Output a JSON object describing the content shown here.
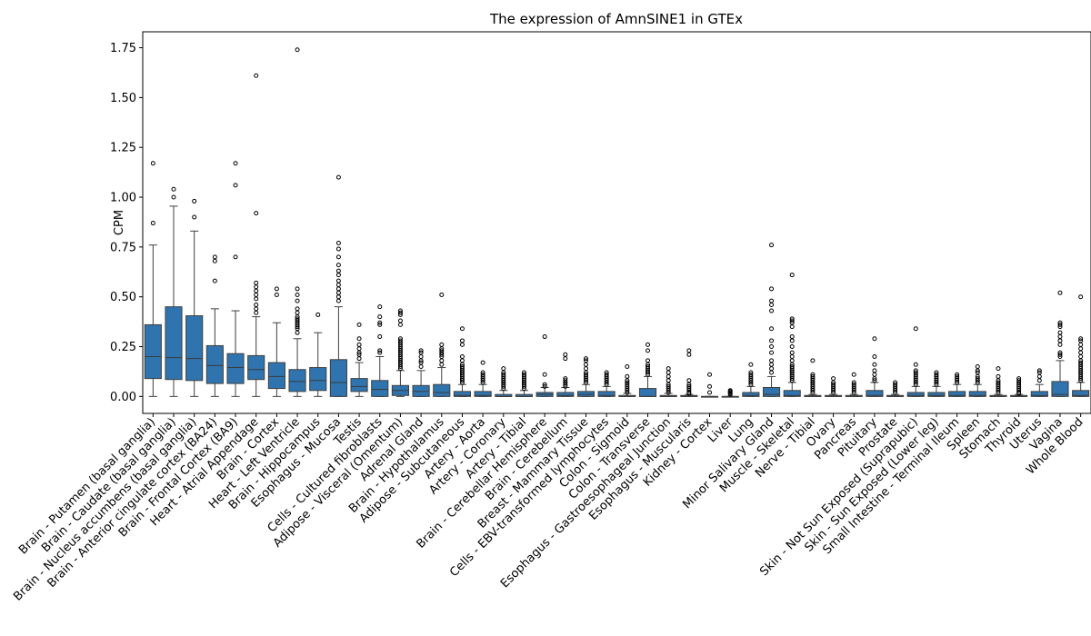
{
  "chart_data": {
    "type": "box",
    "title": "The expression of AmnSINE1 in GTEx",
    "xlabel": "",
    "ylabel": "CPM",
    "ylim": [
      -0.085,
      1.83
    ],
    "yticks": [
      "0.00",
      "0.25",
      "0.50",
      "0.75",
      "1.00",
      "1.25",
      "1.50",
      "1.75"
    ],
    "grid": false,
    "color": "#2f74ae",
    "median_color": "#3a3a3a",
    "categories": [
      "Brain - Putamen (basal ganglia)",
      "Brain - Caudate (basal ganglia)",
      "Brain - Nucleus accumbens (basal ganglia)",
      "Brain - Anterior cingulate cortex (BA24)",
      "Brain - Frontal Cortex (BA9)",
      "Heart - Atrial Appendage",
      "Brain - Cortex",
      "Heart - Left Ventricle",
      "Brain - Hippocampus",
      "Esophagus - Mucosa",
      "Testis",
      "Cells - Cultured fibroblasts",
      "Adipose - Visceral (Omentum)",
      "Adrenal Gland",
      "Brain - Hypothalamus",
      "Adipose - Subcutaneous",
      "Artery - Aorta",
      "Artery - Coronary",
      "Artery - Tibial",
      "Brain - Cerebellar Hemisphere",
      "Brain - Cerebellum",
      "Breast - Mammary Tissue",
      "Cells - EBV-transformed lymphocytes",
      "Colon - Sigmoid",
      "Colon - Transverse",
      "Esophagus - Gastroesophageal Junction",
      "Esophagus - Muscularis",
      "Kidney - Cortex",
      "Liver",
      "Lung",
      "Minor Salivary Gland",
      "Muscle - Skeletal",
      "Nerve - Tibial",
      "Ovary",
      "Pancreas",
      "Pituitary",
      "Prostate",
      "Skin - Not Sun Exposed (Suprapubic)",
      "Skin - Sun Exposed (Lower leg)",
      "Small Intestine - Terminal Ileum",
      "Spleen",
      "Stomach",
      "Thyroid",
      "Uterus",
      "Vagina",
      "Whole Blood"
    ],
    "boxes": [
      {
        "whislo": 0.0,
        "q1": 0.09,
        "med": 0.2,
        "q3": 0.36,
        "whishi": 0.76,
        "fliers": [
          0.87,
          1.17
        ]
      },
      {
        "whislo": 0.0,
        "q1": 0.085,
        "med": 0.195,
        "q3": 0.45,
        "whishi": 0.955,
        "fliers": [
          1.0,
          1.04
        ]
      },
      {
        "whislo": 0.0,
        "q1": 0.08,
        "med": 0.19,
        "q3": 0.405,
        "whishi": 0.83,
        "fliers": [
          0.9,
          0.98
        ]
      },
      {
        "whislo": 0.0,
        "q1": 0.065,
        "med": 0.155,
        "q3": 0.255,
        "whishi": 0.44,
        "fliers": [
          0.58,
          0.68,
          0.7
        ]
      },
      {
        "whislo": 0.0,
        "q1": 0.065,
        "med": 0.145,
        "q3": 0.215,
        "whishi": 0.43,
        "fliers": [
          0.7,
          1.06,
          1.17
        ]
      },
      {
        "whislo": 0.0,
        "q1": 0.085,
        "med": 0.135,
        "q3": 0.205,
        "whishi": 0.4,
        "fliers": [
          0.42,
          0.44,
          0.46,
          0.49,
          0.51,
          0.53,
          0.55,
          0.57,
          0.92,
          1.61
        ]
      },
      {
        "whislo": 0.0,
        "q1": 0.04,
        "med": 0.1,
        "q3": 0.17,
        "whishi": 0.37,
        "fliers": [
          0.51,
          0.54
        ]
      },
      {
        "whislo": 0.0,
        "q1": 0.025,
        "med": 0.075,
        "q3": 0.135,
        "whishi": 0.29,
        "fliers": [
          0.32,
          0.34,
          0.35,
          0.36,
          0.37,
          0.38,
          0.39,
          0.4,
          0.42,
          0.44,
          0.48,
          0.51,
          0.54,
          1.74
        ]
      },
      {
        "whislo": 0.0,
        "q1": 0.03,
        "med": 0.08,
        "q3": 0.145,
        "whishi": 0.32,
        "fliers": [
          0.41
        ]
      },
      {
        "whislo": 0.0,
        "q1": 0.0,
        "med": 0.07,
        "q3": 0.185,
        "whishi": 0.45,
        "fliers": [
          0.48,
          0.5,
          0.52,
          0.54,
          0.56,
          0.58,
          0.61,
          0.63,
          0.66,
          0.7,
          0.74,
          0.77,
          1.1
        ]
      },
      {
        "whislo": 0.0,
        "q1": 0.025,
        "med": 0.05,
        "q3": 0.09,
        "whishi": 0.17,
        "fliers": [
          0.19,
          0.21,
          0.22,
          0.24,
          0.26,
          0.29,
          0.36
        ]
      },
      {
        "whislo": 0.0,
        "q1": 0.0,
        "med": 0.035,
        "q3": 0.08,
        "whishi": 0.2,
        "fliers": [
          0.22,
          0.23,
          0.3,
          0.36,
          0.37,
          0.4,
          0.45
        ]
      },
      {
        "whislo": 0.0,
        "q1": 0.005,
        "med": 0.03,
        "q3": 0.055,
        "whishi": 0.13,
        "fliers": [
          0.14,
          0.15,
          0.16,
          0.17,
          0.18,
          0.19,
          0.2,
          0.21,
          0.22,
          0.23,
          0.24,
          0.25,
          0.26,
          0.27,
          0.28,
          0.29,
          0.36,
          0.38,
          0.41,
          0.42,
          0.43
        ]
      },
      {
        "whislo": 0.0,
        "q1": 0.0,
        "med": 0.025,
        "q3": 0.055,
        "whishi": 0.13,
        "fliers": [
          0.15,
          0.17,
          0.18,
          0.2,
          0.22,
          0.23
        ]
      },
      {
        "whislo": 0.0,
        "q1": 0.0,
        "med": 0.02,
        "q3": 0.06,
        "whishi": 0.145,
        "fliers": [
          0.16,
          0.18,
          0.2,
          0.21,
          0.22,
          0.23,
          0.24,
          0.26,
          0.51
        ]
      },
      {
        "whislo": 0.0,
        "q1": 0.0,
        "med": 0.005,
        "q3": 0.025,
        "whishi": 0.06,
        "fliers": [
          0.07,
          0.08,
          0.09,
          0.1,
          0.11,
          0.12,
          0.13,
          0.14,
          0.15,
          0.16,
          0.18,
          0.2,
          0.26,
          0.28,
          0.34
        ]
      },
      {
        "whislo": 0.0,
        "q1": 0.0,
        "med": 0.005,
        "q3": 0.025,
        "whishi": 0.06,
        "fliers": [
          0.07,
          0.08,
          0.09,
          0.1,
          0.11,
          0.12,
          0.17
        ]
      },
      {
        "whislo": 0.0,
        "q1": 0.0,
        "med": 0.0,
        "q3": 0.01,
        "whishi": 0.03,
        "fliers": [
          0.04,
          0.05,
          0.06,
          0.07,
          0.08,
          0.09,
          0.1,
          0.11,
          0.12,
          0.14
        ]
      },
      {
        "whislo": 0.0,
        "q1": 0.0,
        "med": 0.0,
        "q3": 0.01,
        "whishi": 0.03,
        "fliers": [
          0.04,
          0.05,
          0.06,
          0.07,
          0.08,
          0.09,
          0.1,
          0.11,
          0.12
        ]
      },
      {
        "whislo": 0.0,
        "q1": 0.0,
        "med": 0.01,
        "q3": 0.02,
        "whishi": 0.045,
        "fliers": [
          0.05,
          0.06,
          0.11,
          0.3
        ]
      },
      {
        "whislo": 0.0,
        "q1": 0.0,
        "med": 0.005,
        "q3": 0.02,
        "whishi": 0.045,
        "fliers": [
          0.05,
          0.06,
          0.07,
          0.08,
          0.09,
          0.19,
          0.21
        ]
      },
      {
        "whislo": 0.0,
        "q1": 0.0,
        "med": 0.01,
        "q3": 0.025,
        "whishi": 0.06,
        "fliers": [
          0.07,
          0.08,
          0.09,
          0.1,
          0.11,
          0.12,
          0.14,
          0.16,
          0.18,
          0.19
        ]
      },
      {
        "whislo": 0.0,
        "q1": 0.0,
        "med": 0.005,
        "q3": 0.025,
        "whishi": 0.05,
        "fliers": [
          0.06,
          0.07,
          0.08,
          0.09,
          0.1,
          0.11,
          0.12
        ]
      },
      {
        "whislo": 0.0,
        "q1": 0.0,
        "med": 0.0,
        "q3": 0.005,
        "whishi": 0.015,
        "fliers": [
          0.02,
          0.03,
          0.04,
          0.05,
          0.06,
          0.07,
          0.08,
          0.1,
          0.15
        ]
      },
      {
        "whislo": 0.0,
        "q1": 0.0,
        "med": 0.0,
        "q3": 0.04,
        "whishi": 0.1,
        "fliers": [
          0.11,
          0.12,
          0.13,
          0.14,
          0.15,
          0.16,
          0.18,
          0.23,
          0.26
        ]
      },
      {
        "whislo": 0.0,
        "q1": 0.0,
        "med": 0.0,
        "q3": 0.005,
        "whishi": 0.015,
        "fliers": [
          0.02,
          0.03,
          0.04,
          0.05,
          0.06,
          0.08,
          0.1,
          0.12,
          0.14
        ]
      },
      {
        "whislo": 0.0,
        "q1": 0.0,
        "med": 0.0,
        "q3": 0.005,
        "whishi": 0.01,
        "fliers": [
          0.015,
          0.02,
          0.03,
          0.04,
          0.05,
          0.06,
          0.08,
          0.21,
          0.23
        ]
      },
      {
        "whislo": 0.0,
        "q1": 0.0,
        "med": 0.0,
        "q3": 0.0,
        "whishi": 0.0,
        "fliers": [
          0.02,
          0.05,
          0.11
        ]
      },
      {
        "whislo": 0.0,
        "q1": 0.0,
        "med": 0.0,
        "q3": 0.0,
        "whishi": 0.0,
        "fliers": [
          0.01,
          0.015,
          0.02,
          0.025,
          0.03
        ]
      },
      {
        "whislo": 0.0,
        "q1": 0.0,
        "med": 0.005,
        "q3": 0.02,
        "whishi": 0.05,
        "fliers": [
          0.06,
          0.07,
          0.08,
          0.09,
          0.1,
          0.11,
          0.12,
          0.16
        ]
      },
      {
        "whislo": 0.0,
        "q1": 0.0,
        "med": 0.01,
        "q3": 0.045,
        "whishi": 0.1,
        "fliers": [
          0.12,
          0.14,
          0.16,
          0.18,
          0.22,
          0.25,
          0.28,
          0.34,
          0.43,
          0.46,
          0.48,
          0.54,
          0.76
        ]
      },
      {
        "whislo": 0.0,
        "q1": 0.0,
        "med": 0.005,
        "q3": 0.03,
        "whishi": 0.07,
        "fliers": [
          0.08,
          0.09,
          0.1,
          0.11,
          0.12,
          0.13,
          0.14,
          0.15,
          0.16,
          0.18,
          0.2,
          0.22,
          0.25,
          0.28,
          0.3,
          0.35,
          0.37,
          0.38,
          0.39,
          0.61
        ]
      },
      {
        "whislo": 0.0,
        "q1": 0.0,
        "med": 0.0,
        "q3": 0.005,
        "whishi": 0.01,
        "fliers": [
          0.02,
          0.03,
          0.04,
          0.05,
          0.06,
          0.07,
          0.08,
          0.09,
          0.1,
          0.11,
          0.18
        ]
      },
      {
        "whislo": 0.0,
        "q1": 0.0,
        "med": 0.0,
        "q3": 0.005,
        "whishi": 0.01,
        "fliers": [
          0.02,
          0.03,
          0.04,
          0.05,
          0.06,
          0.07,
          0.09
        ]
      },
      {
        "whislo": 0.0,
        "q1": 0.0,
        "med": 0.0,
        "q3": 0.005,
        "whishi": 0.01,
        "fliers": [
          0.02,
          0.03,
          0.04,
          0.05,
          0.06,
          0.07,
          0.11
        ]
      },
      {
        "whislo": 0.0,
        "q1": 0.0,
        "med": 0.005,
        "q3": 0.03,
        "whishi": 0.07,
        "fliers": [
          0.08,
          0.09,
          0.11,
          0.13,
          0.16,
          0.2,
          0.29
        ]
      },
      {
        "whislo": 0.0,
        "q1": 0.0,
        "med": 0.0,
        "q3": 0.005,
        "whishi": 0.01,
        "fliers": [
          0.02,
          0.03,
          0.04,
          0.05,
          0.06,
          0.07
        ]
      },
      {
        "whislo": 0.0,
        "q1": 0.0,
        "med": 0.005,
        "q3": 0.02,
        "whishi": 0.05,
        "fliers": [
          0.06,
          0.07,
          0.08,
          0.09,
          0.1,
          0.11,
          0.12,
          0.13,
          0.16,
          0.34
        ]
      },
      {
        "whislo": 0.0,
        "q1": 0.0,
        "med": 0.005,
        "q3": 0.02,
        "whishi": 0.05,
        "fliers": [
          0.06,
          0.07,
          0.08,
          0.09,
          0.1,
          0.11,
          0.12
        ]
      },
      {
        "whislo": 0.0,
        "q1": 0.0,
        "med": 0.005,
        "q3": 0.025,
        "whishi": 0.06,
        "fliers": [
          0.07,
          0.08,
          0.09,
          0.1,
          0.11
        ]
      },
      {
        "whislo": 0.0,
        "q1": 0.0,
        "med": 0.005,
        "q3": 0.025,
        "whishi": 0.06,
        "fliers": [
          0.07,
          0.08,
          0.09,
          0.1,
          0.12,
          0.13,
          0.15
        ]
      },
      {
        "whislo": 0.0,
        "q1": 0.0,
        "med": 0.0,
        "q3": 0.005,
        "whishi": 0.01,
        "fliers": [
          0.02,
          0.03,
          0.04,
          0.05,
          0.06,
          0.07,
          0.08,
          0.1,
          0.14
        ]
      },
      {
        "whislo": 0.0,
        "q1": 0.0,
        "med": 0.0,
        "q3": 0.005,
        "whishi": 0.01,
        "fliers": [
          0.015,
          0.02,
          0.03,
          0.04,
          0.05,
          0.06,
          0.07,
          0.08,
          0.09
        ]
      },
      {
        "whislo": 0.0,
        "q1": 0.0,
        "med": 0.005,
        "q3": 0.025,
        "whishi": 0.06,
        "fliers": [
          0.08,
          0.1,
          0.12,
          0.13
        ]
      },
      {
        "whislo": 0.0,
        "q1": 0.0,
        "med": 0.01,
        "q3": 0.075,
        "whishi": 0.18,
        "fliers": [
          0.2,
          0.21,
          0.22,
          0.26,
          0.28,
          0.3,
          0.32,
          0.35,
          0.36,
          0.37,
          0.52
        ]
      },
      {
        "whislo": 0.0,
        "q1": 0.0,
        "med": 0.005,
        "q3": 0.03,
        "whishi": 0.07,
        "fliers": [
          0.08,
          0.09,
          0.1,
          0.11,
          0.12,
          0.13,
          0.14,
          0.15,
          0.16,
          0.17,
          0.18,
          0.2,
          0.22,
          0.24,
          0.26,
          0.28,
          0.29,
          0.5
        ]
      }
    ]
  }
}
